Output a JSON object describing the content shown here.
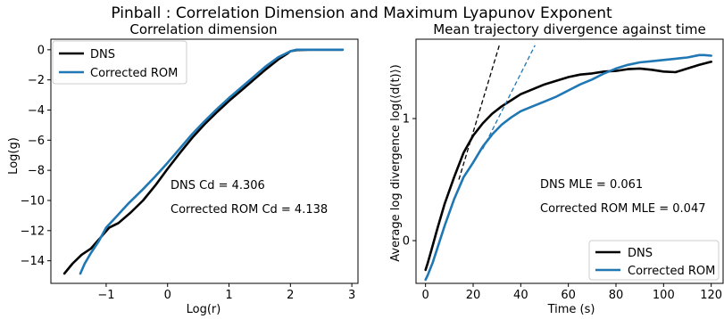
{
  "figure": {
    "title": "Pinball : Correlation Dimension and Maximum Lyapunov Exponent"
  },
  "chart_data": [
    {
      "type": "line",
      "title": "Correlation dimension",
      "xlabel": "Log(r)",
      "ylabel": "Log(g)",
      "xlim": [
        -1.9,
        3.1
      ],
      "ylim": [
        -15.5,
        0.7
      ],
      "xticks": [
        -1,
        0,
        1,
        2,
        3
      ],
      "xtick_labels": [
        "−1",
        "0",
        "1",
        "2",
        "3"
      ],
      "yticks": [
        0,
        -2,
        -4,
        -6,
        -8,
        -10,
        -12,
        -14
      ],
      "ytick_labels": [
        "0",
        "−2",
        "−4",
        "−6",
        "−8",
        "−10",
        "−12",
        "−14"
      ],
      "grid": false,
      "legend": {
        "position": "top-left",
        "entries": [
          "DNS",
          "Corrected ROM"
        ]
      },
      "colors": {
        "DNS": "#000000",
        "Corrected ROM": "#1f77b4"
      },
      "annotations": [
        "DNS Cd = 4.306",
        "Corrected ROM Cd = 4.138"
      ],
      "series": [
        {
          "name": "DNS",
          "x": [
            -1.68,
            -1.55,
            -1.4,
            -1.25,
            -1.1,
            -0.95,
            -0.8,
            -0.6,
            -0.4,
            -0.2,
            0.0,
            0.2,
            0.4,
            0.6,
            0.8,
            1.0,
            1.2,
            1.4,
            1.6,
            1.8,
            1.95,
            2.0,
            2.1,
            2.3,
            2.6,
            2.85
          ],
          "y": [
            -14.85,
            -14.2,
            -13.6,
            -13.2,
            -12.5,
            -11.8,
            -11.5,
            -10.8,
            -10.0,
            -9.0,
            -7.9,
            -6.85,
            -5.85,
            -4.95,
            -4.15,
            -3.4,
            -2.7,
            -2.0,
            -1.3,
            -0.65,
            -0.25,
            -0.1,
            -0.02,
            0.0,
            0.0,
            0.0
          ]
        },
        {
          "name": "Corrected ROM",
          "x": [
            -1.42,
            -1.35,
            -1.25,
            -1.12,
            -1.0,
            -0.85,
            -0.65,
            -0.4,
            -0.2,
            0.0,
            0.2,
            0.4,
            0.6,
            0.8,
            1.0,
            1.2,
            1.4,
            1.6,
            1.8,
            2.0,
            2.1,
            2.3,
            2.6,
            2.85
          ],
          "y": [
            -14.85,
            -14.2,
            -13.5,
            -12.7,
            -11.8,
            -11.15,
            -10.25,
            -9.25,
            -8.4,
            -7.5,
            -6.55,
            -5.6,
            -4.75,
            -3.95,
            -3.2,
            -2.5,
            -1.8,
            -1.1,
            -0.5,
            -0.1,
            0.0,
            0.0,
            0.0,
            0.0
          ]
        }
      ]
    },
    {
      "type": "line",
      "title": "Mean trajectory divergence against time",
      "xlabel": "Time (s)",
      "ylabel": "Average log divergence log(⟨d(t)⟩)",
      "xlim": [
        -4,
        125
      ],
      "ylim": [
        -0.35,
        1.65
      ],
      "xticks": [
        0,
        20,
        40,
        60,
        80,
        100,
        120
      ],
      "xtick_labels": [
        "0",
        "20",
        "40",
        "60",
        "80",
        "100",
        "120"
      ],
      "yticks": [
        0,
        1
      ],
      "ytick_labels": [
        "0",
        "1"
      ],
      "grid": false,
      "legend": {
        "position": "bottom-right",
        "entries": [
          "DNS",
          "Corrected ROM"
        ]
      },
      "colors": {
        "DNS": "#000000",
        "Corrected ROM": "#1f77b4"
      },
      "annotations": [
        "DNS MLE = 0.061",
        "Corrected ROM MLE = 0.047"
      ],
      "series": [
        {
          "name": "DNS",
          "x": [
            0,
            1,
            3,
            5,
            8,
            12,
            16,
            20,
            24,
            28,
            32,
            36,
            40,
            45,
            50,
            55,
            60,
            65,
            70,
            75,
            80,
            85,
            90,
            95,
            100,
            105,
            110,
            115,
            120
          ],
          "y": [
            -0.24,
            -0.18,
            -0.04,
            0.1,
            0.3,
            0.52,
            0.72,
            0.86,
            0.96,
            1.04,
            1.1,
            1.15,
            1.2,
            1.24,
            1.28,
            1.31,
            1.34,
            1.36,
            1.37,
            1.385,
            1.39,
            1.405,
            1.41,
            1.4,
            1.385,
            1.38,
            1.41,
            1.44,
            1.465
          ]
        },
        {
          "name": "Corrected ROM",
          "x": [
            0,
            1,
            3,
            5,
            8,
            12,
            16,
            20,
            24,
            28,
            32,
            36,
            40,
            45,
            50,
            55,
            60,
            65,
            70,
            75,
            80,
            85,
            90,
            95,
            100,
            105,
            110,
            115,
            117,
            120
          ],
          "y": [
            -0.32,
            -0.28,
            -0.18,
            -0.06,
            0.12,
            0.34,
            0.52,
            0.64,
            0.77,
            0.87,
            0.95,
            1.01,
            1.06,
            1.1,
            1.14,
            1.18,
            1.23,
            1.28,
            1.32,
            1.37,
            1.41,
            1.44,
            1.46,
            1.47,
            1.48,
            1.49,
            1.5,
            1.52,
            1.52,
            1.515
          ]
        }
      ],
      "fit_lines": [
        {
          "series": "DNS",
          "x": [
            14,
            31
          ],
          "y": [
            0.5,
            1.6
          ]
        },
        {
          "series": "Corrected ROM",
          "x": [
            24,
            46
          ],
          "y": [
            0.75,
            1.6
          ]
        }
      ]
    }
  ]
}
